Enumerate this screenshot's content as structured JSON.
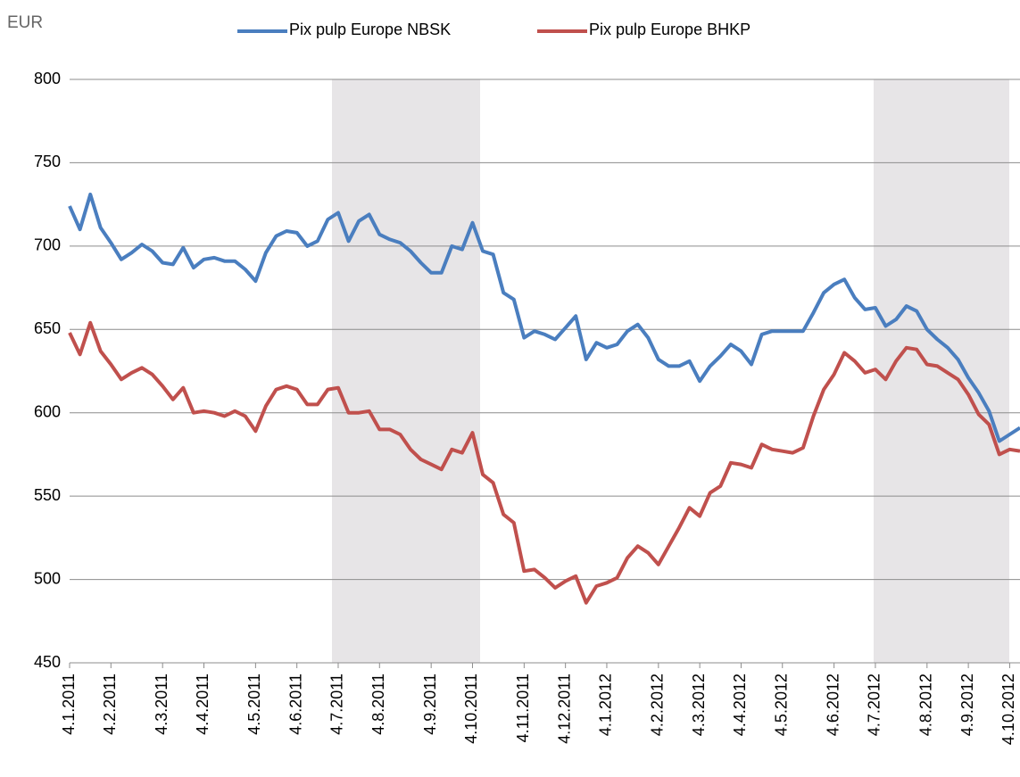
{
  "chart_data": {
    "type": "line",
    "y_axis_label": "EUR",
    "legend": "top",
    "grid": true,
    "ylim": [
      450,
      800
    ],
    "yticks": [
      450,
      500,
      550,
      600,
      650,
      700,
      750,
      800
    ],
    "categories": [
      "4.1.2011",
      null,
      null,
      null,
      "4.2.2011",
      null,
      null,
      null,
      null,
      "4.3.2011",
      null,
      null,
      null,
      "4.4.2011",
      null,
      null,
      null,
      null,
      "4.5.2011",
      null,
      null,
      null,
      "4.6.2011",
      null,
      null,
      null,
      "4.7.2011",
      null,
      null,
      null,
      "4.8.2011",
      null,
      null,
      null,
      null,
      "4.9.2011",
      null,
      null,
      null,
      "4.10.2011",
      null,
      null,
      null,
      null,
      "4.11.2011",
      null,
      null,
      null,
      "4.12.2011",
      null,
      null,
      null,
      "4.1.2012",
      null,
      null,
      null,
      null,
      "4.2.2012",
      null,
      null,
      null,
      "4.3.2012",
      null,
      null,
      null,
      "4.4.2012",
      null,
      null,
      null,
      "4.5.2012",
      null,
      null,
      null,
      null,
      "4.6.2012",
      null,
      null,
      null,
      "4.7.2012",
      null,
      null,
      null,
      null,
      "4.8.2012",
      null,
      null,
      null,
      "4.9.2012",
      null,
      null,
      null,
      "4.10.2012",
      null
    ],
    "series": [
      {
        "name": "Pix pulp Europe NBSK",
        "color": "#4a7ebf",
        "values": [
          724,
          710,
          731,
          711,
          702,
          692,
          696,
          701,
          697,
          690,
          689,
          699,
          687,
          692,
          693,
          691,
          691,
          686,
          679,
          696,
          706,
          709,
          708,
          700,
          703,
          716,
          720,
          703,
          715,
          719,
          707,
          704,
          702,
          697,
          690,
          684,
          684,
          700,
          698,
          714,
          697,
          695,
          672,
          668,
          645,
          649,
          647,
          644,
          651,
          658,
          632,
          642,
          639,
          641,
          649,
          653,
          645,
          632,
          628,
          628,
          631,
          619,
          628,
          634,
          641,
          637,
          629,
          647,
          649,
          649,
          649,
          649,
          660,
          672,
          677,
          680,
          669,
          662,
          663,
          652,
          656,
          664,
          661,
          650,
          644,
          639,
          632,
          621,
          612,
          601,
          583,
          587,
          591
        ]
      },
      {
        "name": "Pix pulp Europe BHKP",
        "color": "#c0504d",
        "values": [
          648,
          635,
          654,
          637,
          629,
          620,
          624,
          627,
          623,
          616,
          608,
          615,
          600,
          601,
          600,
          598,
          601,
          598,
          589,
          604,
          614,
          616,
          614,
          605,
          605,
          614,
          615,
          600,
          600,
          601,
          590,
          590,
          587,
          578,
          572,
          569,
          566,
          578,
          576,
          588,
          563,
          558,
          539,
          534,
          505,
          506,
          501,
          495,
          499,
          502,
          486,
          496,
          498,
          501,
          513,
          520,
          516,
          509,
          520,
          531,
          543,
          538,
          552,
          556,
          570,
          569,
          567,
          581,
          578,
          577,
          576,
          579,
          598,
          614,
          623,
          636,
          631,
          624,
          626,
          620,
          631,
          639,
          638,
          629,
          628,
          624,
          620,
          611,
          599,
          593,
          575,
          578,
          577
        ]
      }
    ]
  }
}
